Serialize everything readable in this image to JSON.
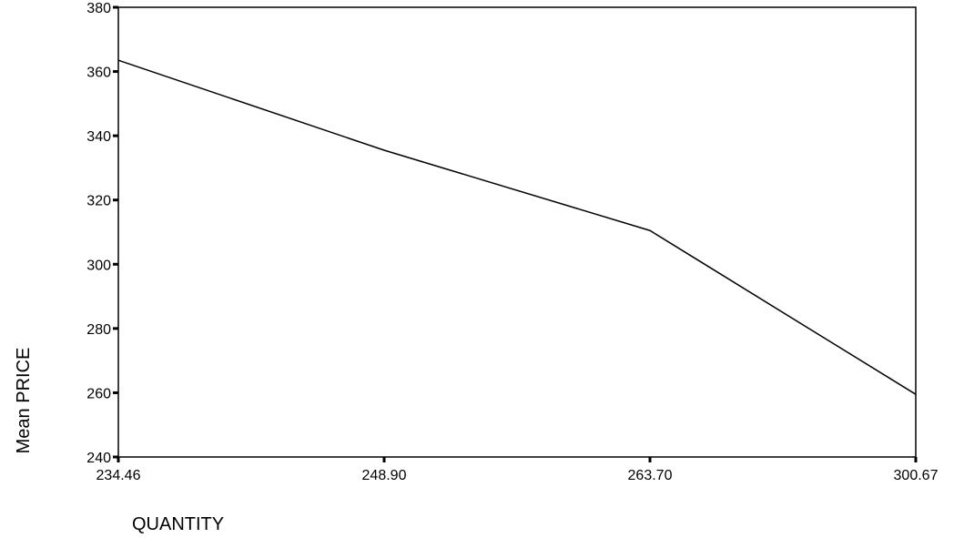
{
  "chart_data": {
    "type": "line",
    "title": "",
    "xlabel": "QUANTITY",
    "ylabel": "Mean PRICE",
    "x_scale": "categorical",
    "categories": [
      "234.46",
      "248.90",
      "263.70",
      "300.67"
    ],
    "series": [
      {
        "values": [
          363.5,
          335.5,
          310.5,
          259.5
        ]
      }
    ],
    "ylim": [
      240,
      380
    ],
    "y_ticks": [
      "240",
      "260",
      "280",
      "300",
      "320",
      "340",
      "360",
      "380"
    ],
    "grid": false,
    "legend": "none",
    "colors": {
      "line": "#000000",
      "frame": "#000000",
      "background": "#ffffff"
    }
  }
}
